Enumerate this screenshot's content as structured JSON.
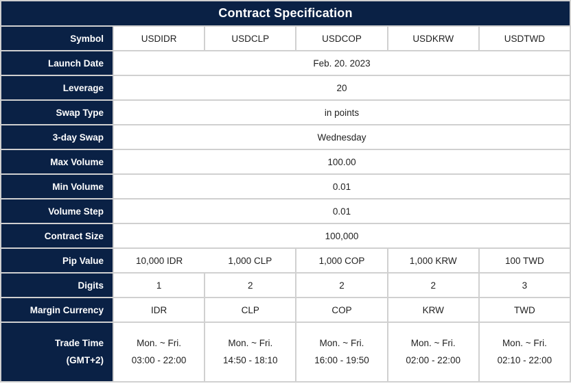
{
  "title": "Contract Specification",
  "colors": {
    "header_navy": "#0a2145",
    "grid_gray": "#d0d0d0",
    "cell_text": "#1f1f1f",
    "label_text": "#ffffff"
  },
  "rows": {
    "symbol": {
      "label": "Symbol",
      "values": [
        "USDIDR",
        "USDCLP",
        "USDCOP",
        "USDKRW",
        "USDTWD"
      ]
    },
    "launch_date": {
      "label": "Launch Date",
      "value": "Feb. 20. 2023"
    },
    "leverage": {
      "label": "Leverage",
      "value": "20"
    },
    "swap_type": {
      "label": "Swap Type",
      "value": "in points"
    },
    "three_day_swap": {
      "label": "3-day Swap",
      "value": "Wednesday"
    },
    "max_volume": {
      "label": "Max Volume",
      "value": "100.00"
    },
    "min_volume": {
      "label": "Min Volume",
      "value": "0.01"
    },
    "volume_step": {
      "label": "Volume Step",
      "value": "0.01"
    },
    "contract_size": {
      "label": "Contract Size",
      "value": "100,000"
    },
    "pip_value": {
      "label": "Pip Value",
      "values": [
        "10,000 IDR",
        "1,000 CLP",
        "1,000 COP",
        "1,000 KRW",
        "100 TWD"
      ]
    },
    "digits": {
      "label": "Digits",
      "values": [
        "1",
        "2",
        "2",
        "2",
        "3"
      ]
    },
    "margin_currency": {
      "label": "Margin Currency",
      "values": [
        "IDR",
        "CLP",
        "COP",
        "KRW",
        "TWD"
      ]
    },
    "trade_time": {
      "label_line1": "Trade Time",
      "label_line2": "(GMT+2)",
      "values": [
        {
          "days": "Mon. ~ Fri.",
          "hours": "03:00 - 22:00"
        },
        {
          "days": "Mon. ~ Fri.",
          "hours": "14:50 - 18:10"
        },
        {
          "days": "Mon. ~ Fri.",
          "hours": "16:00 - 19:50"
        },
        {
          "days": "Mon. ~ Fri.",
          "hours": "02:00 - 22:00"
        },
        {
          "days": "Mon. ~ Fri.",
          "hours": "02:10 - 22:00"
        }
      ]
    }
  }
}
